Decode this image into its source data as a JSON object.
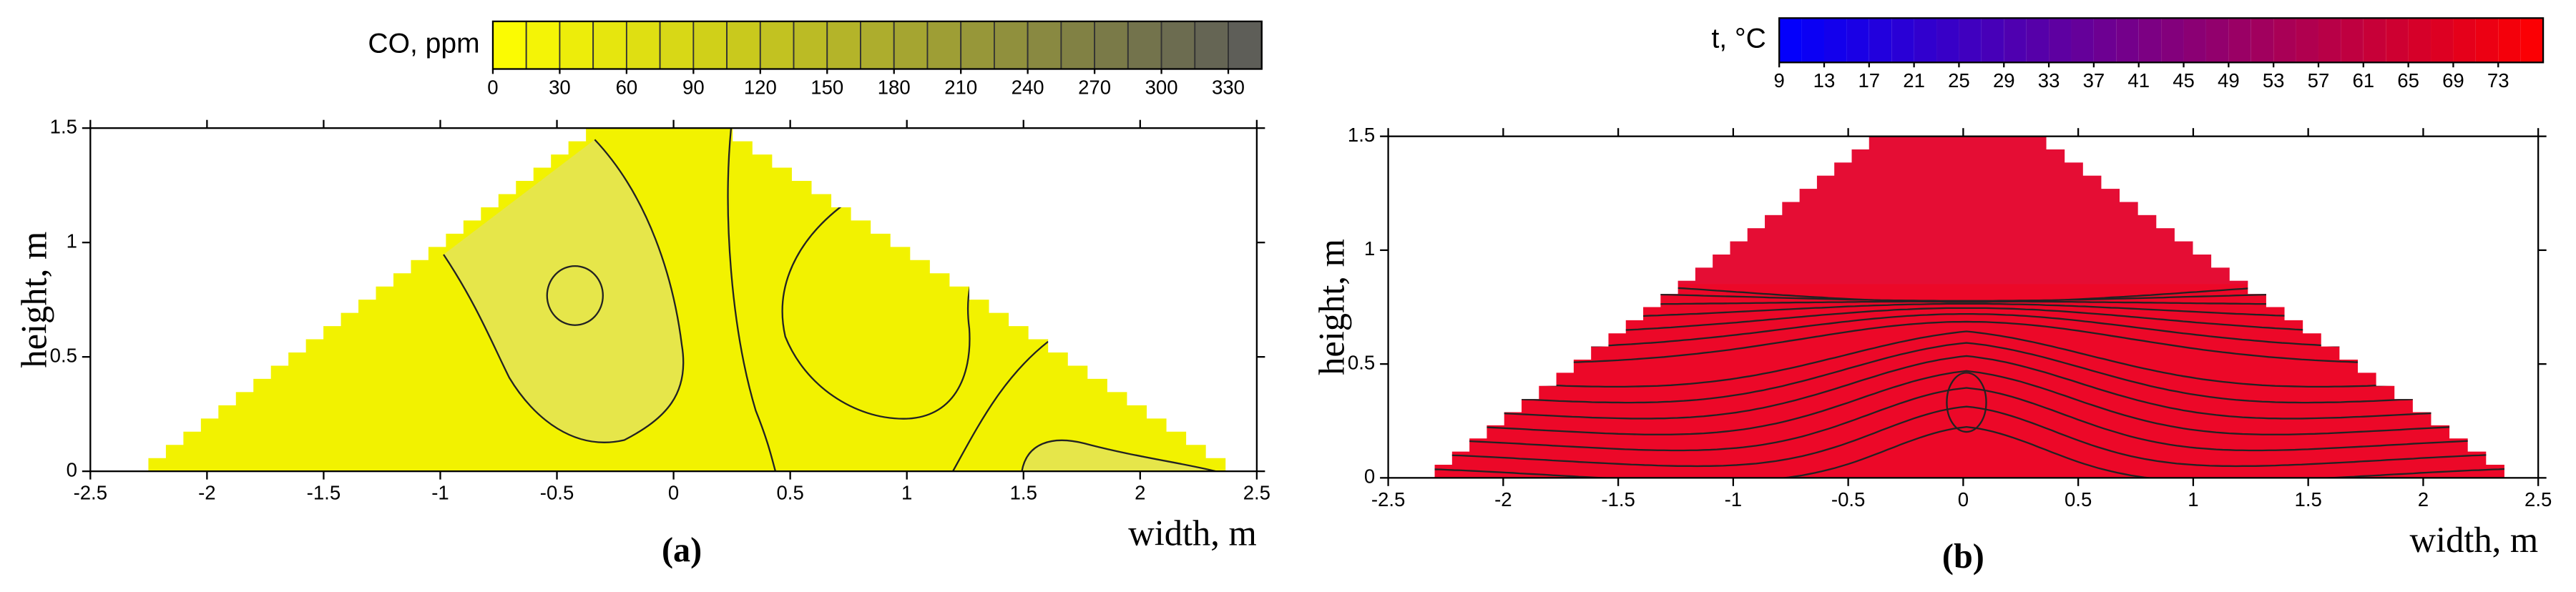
{
  "chart_data": [
    {
      "type": "contour",
      "colorbar_label": "CO, ppm",
      "clim": [
        0,
        345
      ],
      "cticks": [
        0,
        30,
        60,
        90,
        120,
        150,
        180,
        210,
        240,
        270,
        300,
        330
      ],
      "colormap": [
        "#ffff00",
        "#5a5a5a"
      ],
      "xlim": [
        -2.5,
        2.5
      ],
      "ylim": [
        0,
        1.5
      ],
      "xticks": [
        -2.5,
        -2,
        -1.5,
        -1,
        -0.5,
        0,
        0.5,
        1,
        1.5,
        2,
        2.5
      ],
      "yticks": [
        0,
        0.5,
        1,
        1.5
      ],
      "xlabel": "width, m",
      "ylabel": "height, m",
      "caption": "(a)"
    },
    {
      "type": "contour",
      "colorbar_label": "t, °C",
      "clim": [
        9,
        77
      ],
      "cticks": [
        9,
        13,
        17,
        21,
        25,
        29,
        33,
        37,
        41,
        45,
        49,
        53,
        57,
        61,
        65,
        69,
        73
      ],
      "colormap": [
        "#0000ff",
        "#ff0000"
      ],
      "xlim": [
        -2.5,
        2.5
      ],
      "ylim": [
        0,
        1.5
      ],
      "xticks": [
        -2.5,
        -2,
        -1.5,
        -1,
        -0.5,
        0,
        0.5,
        1,
        1.5,
        2,
        2.5
      ],
      "yticks": [
        0,
        0.5,
        1,
        1.5
      ],
      "xlabel": "width, m",
      "ylabel": "height, m",
      "caption": "(b)"
    }
  ]
}
